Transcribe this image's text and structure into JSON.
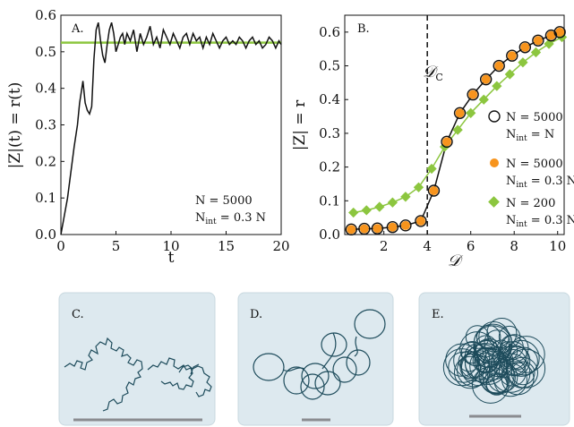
{
  "colors": {
    "black": "#111111",
    "green": "#8cc63f",
    "orange": "#f7941d",
    "panel_bg": "#dde9ef",
    "trajectory": "#1d4b5b",
    "scalebar": "#8a8c90"
  },
  "chart_data": [
    {
      "panel": "A.",
      "type": "line",
      "xlabel": "t",
      "ylabel": "|Z|(t) = r(t)",
      "xlim": [
        0,
        20
      ],
      "ylim": [
        0,
        0.6
      ],
      "xticks": [
        "0",
        "5",
        "10",
        "15",
        "20"
      ],
      "yticks": [
        "0.0",
        "0.1",
        "0.2",
        "0.3",
        "0.4",
        "0.5",
        "0.6"
      ],
      "annotation": [
        "N = 5000",
        "N",
        "int",
        " = 0.3 N"
      ],
      "reference_line": {
        "y": 0.525,
        "color": "#8cc63f"
      },
      "series": [
        {
          "x": [
            0,
            0.3,
            0.6,
            0.9,
            1.2,
            1.5,
            1.7,
            1.9,
            2.0,
            2.2,
            2.4,
            2.6,
            2.8,
            3.0,
            3.2,
            3.4,
            3.6,
            3.8,
            4.0,
            4.2,
            4.4,
            4.6,
            4.8,
            5.0,
            5.2,
            5.4,
            5.6,
            5.8,
            6.0,
            6.3,
            6.6,
            6.9,
            7.2,
            7.5,
            7.8,
            8.1,
            8.4,
            8.7,
            9.0,
            9.3,
            9.6,
            9.9,
            10.2,
            10.5,
            10.8,
            11.1,
            11.4,
            11.7,
            12.0,
            12.3,
            12.6,
            12.9,
            13.2,
            13.5,
            13.8,
            14.1,
            14.4,
            14.7,
            15.0,
            15.3,
            15.6,
            15.9,
            16.2,
            16.5,
            16.8,
            17.1,
            17.4,
            17.7,
            18.0,
            18.3,
            18.6,
            18.9,
            19.2,
            19.5,
            19.8,
            20.0
          ],
          "y": [
            0.0,
            0.05,
            0.1,
            0.17,
            0.24,
            0.3,
            0.36,
            0.4,
            0.42,
            0.36,
            0.34,
            0.33,
            0.35,
            0.48,
            0.56,
            0.58,
            0.53,
            0.49,
            0.47,
            0.52,
            0.56,
            0.58,
            0.55,
            0.5,
            0.52,
            0.54,
            0.55,
            0.52,
            0.55,
            0.53,
            0.56,
            0.5,
            0.55,
            0.52,
            0.54,
            0.57,
            0.52,
            0.54,
            0.51,
            0.56,
            0.54,
            0.52,
            0.55,
            0.53,
            0.51,
            0.54,
            0.55,
            0.52,
            0.55,
            0.53,
            0.54,
            0.51,
            0.54,
            0.52,
            0.55,
            0.53,
            0.51,
            0.53,
            0.54,
            0.52,
            0.53,
            0.52,
            0.54,
            0.53,
            0.51,
            0.53,
            0.54,
            0.52,
            0.53,
            0.51,
            0.52,
            0.54,
            0.53,
            0.51,
            0.53,
            0.52
          ]
        }
      ]
    },
    {
      "panel": "B.",
      "type": "line",
      "xlabel": "𝒟",
      "ylabel": "|Z| = r",
      "xlim": [
        0.2,
        10.3
      ],
      "ylim": [
        0,
        0.65
      ],
      "xticks": [
        "2",
        "4",
        "6",
        "8",
        "10"
      ],
      "yticks": [
        "0.0",
        "0.1",
        "0.2",
        "0.3",
        "0.4",
        "0.5",
        "0.6"
      ],
      "critical_label": "𝒟",
      "critical_sub": "C",
      "critical_x": 4.0,
      "series": [
        {
          "name": "N = 5000",
          "name_line2": [
            "N",
            "int",
            " = N"
          ],
          "marker": "open-circle",
          "x": [
            0.5,
            1.1,
            1.7,
            2.4,
            3.0,
            3.7,
            4.3,
            4.9,
            5.5,
            6.1,
            6.7,
            7.3,
            7.9,
            8.5,
            9.1,
            9.7,
            10.1
          ],
          "y": [
            0.015,
            0.017,
            0.018,
            0.022,
            0.027,
            0.04,
            0.13,
            0.275,
            0.36,
            0.415,
            0.46,
            0.5,
            0.53,
            0.555,
            0.575,
            0.59,
            0.6
          ]
        },
        {
          "name": "N = 5000",
          "name_line2": [
            "N",
            "int",
            " = 0.3 N"
          ],
          "marker": "filled-circle",
          "x": [
            0.5,
            1.1,
            1.7,
            2.4,
            3.0,
            3.7,
            4.3,
            4.9,
            5.5,
            6.1,
            6.7,
            7.3,
            7.9,
            8.5,
            9.1,
            9.7,
            10.1
          ],
          "y": [
            0.015,
            0.017,
            0.018,
            0.022,
            0.027,
            0.04,
            0.13,
            0.275,
            0.36,
            0.415,
            0.46,
            0.5,
            0.53,
            0.555,
            0.575,
            0.59,
            0.6
          ]
        },
        {
          "name": "N = 200",
          "name_line2": [
            "N",
            "int",
            " = 0.3 N"
          ],
          "marker": "diamond",
          "x": [
            0.6,
            1.2,
            1.8,
            2.4,
            3.0,
            3.6,
            4.2,
            4.8,
            5.4,
            6.0,
            6.6,
            7.2,
            7.8,
            8.4,
            9.0,
            9.6,
            10.2
          ],
          "y": [
            0.065,
            0.072,
            0.082,
            0.095,
            0.112,
            0.14,
            0.195,
            0.26,
            0.31,
            0.36,
            0.4,
            0.44,
            0.475,
            0.51,
            0.54,
            0.565,
            0.585
          ]
        }
      ]
    }
  ],
  "panels": {
    "c_label": "C.",
    "d_label": "D.",
    "e_label": "E."
  }
}
